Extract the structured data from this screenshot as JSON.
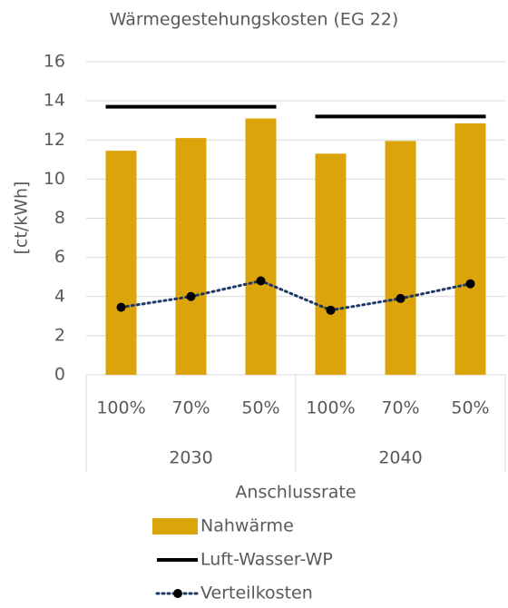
{
  "chart_data": {
    "type": "bar",
    "subtitle": "Wärmegestehungskosten (EG 22)",
    "y_label": "[ct/kWh]",
    "x_label": "Anschlussrate",
    "categories": [
      "100%",
      "70%",
      "50%",
      "100%",
      "70%",
      "50%"
    ],
    "groups": [
      "2030",
      "2040"
    ],
    "ylim": [
      0,
      16
    ],
    "yticks": [
      0,
      2,
      4,
      6,
      8,
      10,
      12,
      14,
      16
    ],
    "grid": true,
    "legend": "bottom",
    "series": [
      {
        "name": "Nahwärme",
        "type": "bar",
        "color": "#dba40b",
        "values": [
          11.45,
          12.1,
          13.1,
          11.3,
          11.95,
          12.85
        ]
      },
      {
        "name": "Luft-Wasser-WP",
        "type": "line",
        "style": "solid",
        "color": "#000000",
        "values": [
          13.7,
          13.7,
          13.7,
          13.2,
          13.2,
          13.2
        ]
      },
      {
        "name": "Verteilkosten",
        "type": "line",
        "style": "dotted",
        "markers": true,
        "color": "#1f3864",
        "values": [
          3.45,
          4.0,
          4.8,
          3.3,
          3.9,
          4.65
        ]
      }
    ]
  }
}
